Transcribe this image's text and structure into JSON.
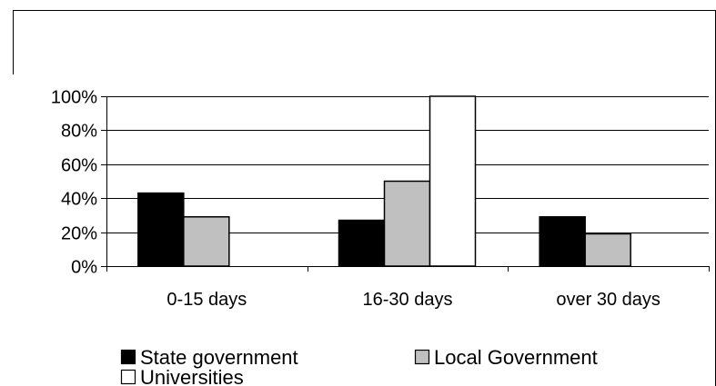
{
  "chart_data": {
    "type": "bar",
    "title": "",
    "xlabel": "",
    "ylabel": "",
    "categories": [
      "0-15 days",
      "16-30 days",
      "over 30 days"
    ],
    "series": [
      {
        "name": "State government",
        "values": [
          43,
          27,
          29
        ],
        "color": "#000000"
      },
      {
        "name": "Local Government",
        "values": [
          29,
          50,
          19
        ],
        "color": "#c0c0c0"
      },
      {
        "name": "Universities",
        "values": [
          0,
          100,
          0
        ],
        "color": "#ffffff"
      }
    ],
    "ylim": [
      0,
      100
    ],
    "yticks": [
      0,
      20,
      40,
      60,
      80,
      100
    ],
    "ytick_labels": [
      "0%",
      "20%",
      "40%",
      "60%",
      "80%",
      "100%"
    ],
    "grid": true,
    "legend_position": "bottom"
  }
}
